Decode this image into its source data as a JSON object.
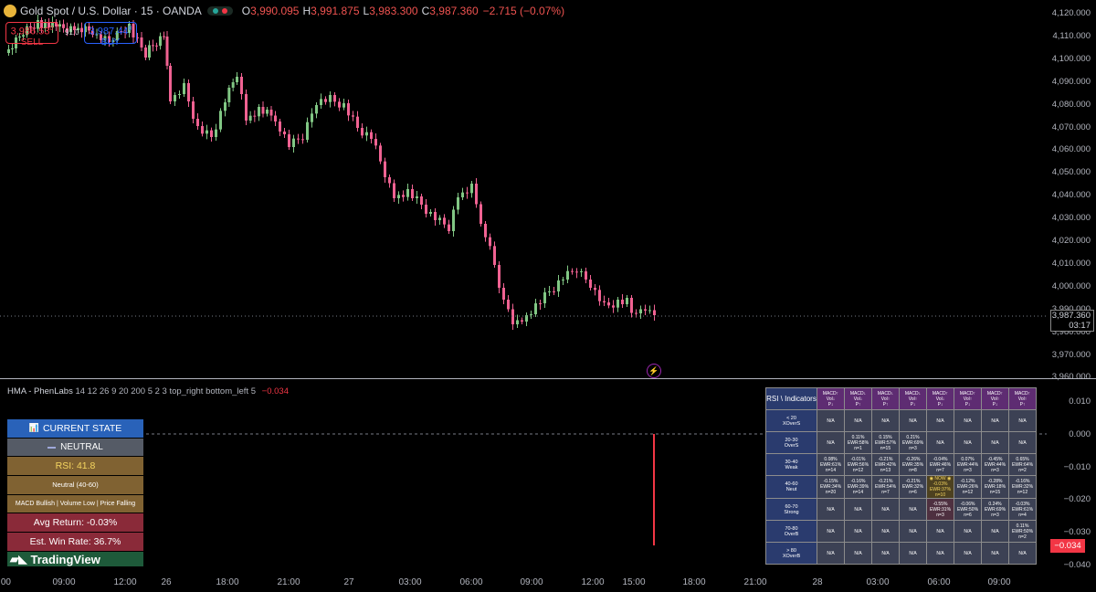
{
  "header": {
    "symbol_title": "Gold Spot / U.S. Dollar · 15 · OANDA",
    "open_label": "O",
    "open": "3,990.095",
    "high_label": "H",
    "high": "3,991.875",
    "low_label": "L",
    "low": "3,983.300",
    "close_label": "C",
    "close": "3,987.360",
    "change": "−2.715 (−0.07%)"
  },
  "trade": {
    "sell_price": "3,986.53",
    "sell_sup": "0",
    "sell_label": "SELL",
    "spread": "91.0",
    "buy_price": "3,987.44",
    "buy_sup": "0",
    "buy_label": "BUY"
  },
  "price_axis": [
    "4,120.000",
    "4,110.000",
    "4,100.000",
    "4,090.000",
    "4,080.000",
    "4,070.000",
    "4,060.000",
    "4,050.000",
    "4,040.000",
    "4,030.000",
    "4,020.000",
    "4,010.000",
    "4,000.000",
    "3,990.000",
    "3,980.000",
    "3,970.000",
    "3,960.000"
  ],
  "last_price": {
    "price": "3,987.360",
    "countdown": "03:17"
  },
  "indicator_axis": [
    "0.010",
    "0.000",
    "−0.010",
    "−0.020",
    "−0.030",
    "−0.040"
  ],
  "indicator_value_tag": "−0.034",
  "time_axis": [
    ":00",
    "09:00",
    "12:00",
    "26",
    "18:00",
    "21:00",
    "27",
    "03:00",
    "06:00",
    "09:00",
    "12:00",
    "15:00",
    "18:00",
    "21:00",
    "28",
    "03:00",
    "06:00",
    "09:00"
  ],
  "indicator": {
    "name": "HMA - PhenLabs",
    "params": "14 12 26 9 20 200 5 2 3 top_right bottom_left 5",
    "value": "−0.034"
  },
  "state_panel": {
    "header": "CURRENT STATE",
    "header_icon": "📊",
    "state": "NEUTRAL",
    "rsi": "RSI: 41.8",
    "zone": "Neutral (40-60)",
    "conditions": "MACD Bullish | Volume Low | Price Falling",
    "avg_return": "Avg Return: -0.03%",
    "win_rate": "Est. Win Rate: 36.7%"
  },
  "branding": {
    "name": "TradingView"
  },
  "matrix": {
    "corner": "RSI \\ Indicators",
    "columns": [
      [
        "MACD↑",
        "Vol↓",
        "P↓"
      ],
      [
        "MACD↓",
        "Vol↓",
        "P↑"
      ],
      [
        "MACD↓",
        "Vol↑",
        "P↑"
      ],
      [
        "MACD↓",
        "Vol↑",
        "P↓"
      ],
      [
        "MACD↑",
        "Vol↓",
        "P↓"
      ],
      [
        "MACD↑",
        "Vol↑",
        "P↓"
      ],
      [
        "MACD↑",
        "Vol↑",
        "P↓"
      ],
      [
        "MACD↑",
        "Vol↑",
        "P↑"
      ]
    ],
    "rows": [
      {
        "label": [
          "< 20",
          "XOverS"
        ],
        "cells": [
          [
            "N/A"
          ],
          [
            "N/A"
          ],
          [
            "N/A"
          ],
          [
            "N/A"
          ],
          [
            "N/A"
          ],
          [
            "N/A"
          ],
          [
            "N/A"
          ],
          [
            "N/A"
          ]
        ]
      },
      {
        "label": [
          "20-30",
          "OverS"
        ],
        "cells": [
          [
            "N/A"
          ],
          [
            "0.11%",
            "EWR:58%",
            "n=1"
          ],
          [
            "0.15%",
            "EWR:57%",
            "n=15"
          ],
          [
            "0.21%",
            "EWR:69%",
            "n=3"
          ],
          [
            "N/A"
          ],
          [
            "N/A"
          ],
          [
            "N/A"
          ],
          [
            "N/A"
          ]
        ]
      },
      {
        "label": [
          "30-40",
          "Weak"
        ],
        "cells": [
          [
            "0.08%",
            "EWR:61%",
            "n=14"
          ],
          [
            "-0.01%",
            "EWR:56%",
            "n=12"
          ],
          [
            "-0.21%",
            "EWR:42%",
            "n=13"
          ],
          [
            "-0.26%",
            "EWR:35%",
            "n=8"
          ],
          [
            "-0.04%",
            "EWR:46%",
            "n=7"
          ],
          [
            "0.07%",
            "EWR:44%",
            "n=3"
          ],
          [
            "-0.45%",
            "EWR:44%",
            "n=3"
          ],
          [
            "0.65%",
            "EWR:64%",
            "n=2"
          ]
        ]
      },
      {
        "label": [
          "40-60",
          "Neut"
        ],
        "cells": [
          [
            "-0.15%",
            "EWR:34%",
            "n=20"
          ],
          [
            "-0.16%",
            "EWR:39%",
            "n=14"
          ],
          [
            "-0.21%",
            "EWR:54%",
            "n=7"
          ],
          [
            "-0.21%",
            "EWR:32%",
            "n=6"
          ],
          [
            "◉ NOW ◉",
            "-0.03%",
            "EWR:37%",
            "n=10"
          ],
          [
            "-0.12%",
            "EWR:26%",
            "n=12"
          ],
          [
            "-0.28%",
            "EWR:18%",
            "n=15"
          ],
          [
            "-0.16%",
            "EWR:32%",
            "n=12"
          ]
        ]
      },
      {
        "label": [
          "60-70",
          "Strong"
        ],
        "cells": [
          [
            "N/A"
          ],
          [
            "N/A"
          ],
          [
            "N/A"
          ],
          [
            "N/A"
          ],
          [
            "-0.55%",
            "EWR:31%",
            "n=3"
          ],
          [
            "-0.06%",
            "EWR:50%",
            "n=6"
          ],
          [
            "0.24%",
            "EWR:69%",
            "n=3"
          ],
          [
            "-0.03%",
            "EWR:61%",
            "n=4"
          ]
        ]
      },
      {
        "label": [
          "70-80",
          "OverB"
        ],
        "cells": [
          [
            "N/A"
          ],
          [
            "N/A"
          ],
          [
            "N/A"
          ],
          [
            "N/A"
          ],
          [
            "N/A"
          ],
          [
            "N/A"
          ],
          [
            "N/A"
          ],
          [
            "0.11%",
            "EWR:50%",
            "n=2"
          ]
        ]
      },
      {
        "label": [
          "> 80",
          "XOverB"
        ],
        "cells": [
          [
            "N/A"
          ],
          [
            "N/A"
          ],
          [
            "N/A"
          ],
          [
            "N/A"
          ],
          [
            "N/A"
          ],
          [
            "N/A"
          ],
          [
            "N/A"
          ],
          [
            "N/A"
          ]
        ]
      }
    ]
  },
  "colors": {
    "bull": "#81c784",
    "bear": "#f06292",
    "histogram": "#f23645",
    "accent": "#2962ff"
  }
}
